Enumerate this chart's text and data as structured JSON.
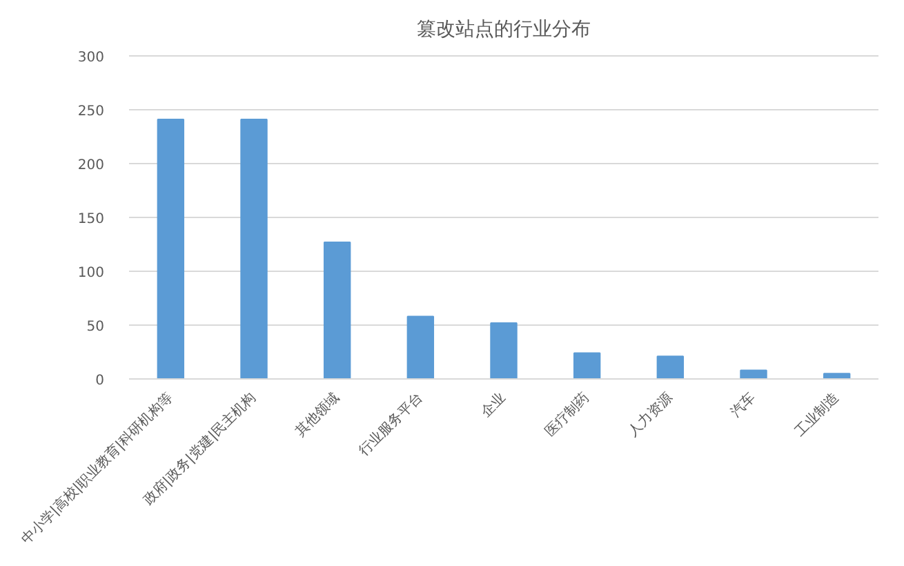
{
  "chart_data": {
    "type": "bar",
    "title": "篡改站点的行业分布",
    "categories": [
      "中小学|高校|职业教育|科研机构等",
      "政府|政务|党建|民主机构",
      "其他领域",
      "行业服务平台",
      "企业",
      "医疗制药",
      "人力资源",
      "汽车",
      "工业制造"
    ],
    "values": [
      241,
      241,
      127,
      58,
      52,
      24,
      21,
      8,
      5
    ],
    "color": "#5b9bd5",
    "ylim": [
      0,
      300
    ],
    "yticks": [
      0,
      50,
      100,
      150,
      200,
      250,
      300
    ],
    "grid": "y"
  }
}
